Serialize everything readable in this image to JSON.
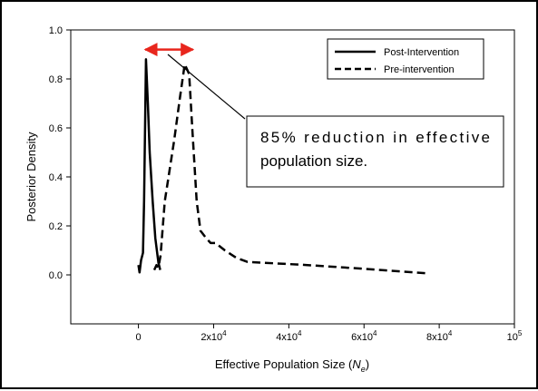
{
  "chart_data": {
    "type": "line",
    "title": "",
    "xlabel": "Effective Population Size (",
    "xlabel_symbol": "N",
    "xlabel_subscript": "e",
    "xlabel_suffix": ")",
    "ylabel": "Posterior Density",
    "xlim": [
      -18000,
      100000
    ],
    "ylim": [
      -0.2,
      1.0
    ],
    "x_ticks": [
      {
        "value": 0,
        "base": "0",
        "exp": ""
      },
      {
        "value": 20000,
        "base": "2x10",
        "exp": "4"
      },
      {
        "value": 40000,
        "base": "4x10",
        "exp": "4"
      },
      {
        "value": 60000,
        "base": "6x10",
        "exp": "4"
      },
      {
        "value": 80000,
        "base": "8x10",
        "exp": "4"
      },
      {
        "value": 100000,
        "base": "10",
        "exp": "5"
      }
    ],
    "y_ticks": [
      "0.0",
      "0.2",
      "0.4",
      "0.6",
      "0.8",
      "1.0"
    ],
    "y_tick_values": [
      0.0,
      0.2,
      0.4,
      0.6,
      0.8,
      1.0
    ],
    "series": [
      {
        "name": "Post-Intervention",
        "style": "solid",
        "color": "#000000",
        "points": [
          [
            0,
            0.04
          ],
          [
            300,
            0.01
          ],
          [
            700,
            0.06
          ],
          [
            1200,
            0.09
          ],
          [
            1500,
            0.3
          ],
          [
            2000,
            0.88
          ],
          [
            2500,
            0.7
          ],
          [
            3000,
            0.5
          ],
          [
            3800,
            0.3
          ],
          [
            4500,
            0.15
          ],
          [
            5300,
            0.05
          ],
          [
            5800,
            0.02
          ]
        ]
      },
      {
        "name": "Pre-intervention",
        "style": "dashed",
        "color": "#000000",
        "points": [
          [
            4200,
            0.02
          ],
          [
            4800,
            0.04
          ],
          [
            5300,
            0.03
          ],
          [
            5900,
            0.08
          ],
          [
            7000,
            0.3
          ],
          [
            8200,
            0.42
          ],
          [
            9500,
            0.55
          ],
          [
            11000,
            0.72
          ],
          [
            12300,
            0.86
          ],
          [
            13500,
            0.82
          ],
          [
            14300,
            0.6
          ],
          [
            15500,
            0.3
          ],
          [
            16500,
            0.18
          ],
          [
            18000,
            0.15
          ],
          [
            19200,
            0.13
          ],
          [
            20500,
            0.13
          ],
          [
            23000,
            0.1
          ],
          [
            26000,
            0.07
          ],
          [
            29000,
            0.053
          ],
          [
            45000,
            0.04
          ],
          [
            60000,
            0.025
          ],
          [
            77000,
            0.006
          ]
        ]
      }
    ],
    "legend_position": "top-right",
    "annotations": [
      {
        "text": "85% reduction in effective population size.",
        "kind": "callout-box"
      },
      {
        "kind": "double-arrow",
        "from_x": 1800,
        "to_x": 14500,
        "y": 0.92,
        "color": "#e8261d"
      }
    ],
    "grid": false
  }
}
